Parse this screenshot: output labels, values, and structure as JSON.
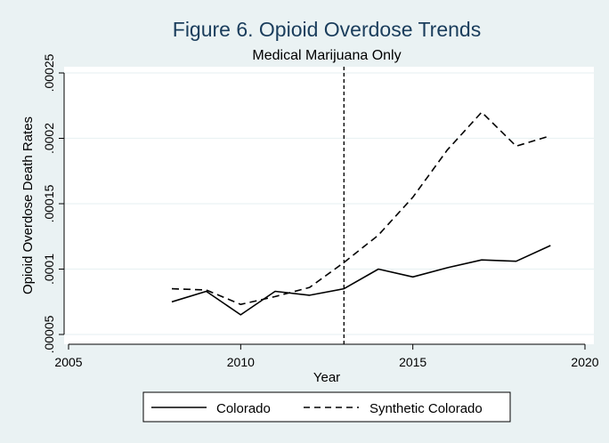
{
  "chart_data": {
    "type": "line",
    "title": "Figure 6. Opioid Overdose Trends",
    "subtitle": "Medical Marijuana Only",
    "xlabel": "Year",
    "ylabel": "Opioid Overdose Death Rates",
    "xlim": [
      2005,
      2020
    ],
    "ylim": [
      5e-05,
      0.00025
    ],
    "xticks": [
      {
        "value": 2005,
        "label": "2005"
      },
      {
        "value": 2010,
        "label": "2010"
      },
      {
        "value": 2015,
        "label": "2015"
      },
      {
        "value": 2020,
        "label": "2020"
      }
    ],
    "yticks": [
      {
        "value": 5e-05,
        "label": ".00005"
      },
      {
        "value": 0.0001,
        "label": ".0001"
      },
      {
        "value": 0.00015,
        "label": ".00015"
      },
      {
        "value": 0.0002,
        "label": ".0002"
      },
      {
        "value": 0.00025,
        "label": ".00025"
      }
    ],
    "grid": true,
    "reference_line_x": 2013,
    "legend_position": "bottom",
    "x": [
      2008,
      2009,
      2010,
      2011,
      2012,
      2013,
      2014,
      2015,
      2016,
      2017,
      2018,
      2019
    ],
    "series": [
      {
        "name": "Colorado",
        "style": "solid",
        "color": "#000000",
        "values": [
          7.5e-05,
          8.3e-05,
          6.5e-05,
          8.3e-05,
          8e-05,
          8.5e-05,
          0.0001,
          9.4e-05,
          0.000101,
          0.000107,
          0.000106,
          0.000118
        ]
      },
      {
        "name": "Synthetic Colorado",
        "style": "dashed",
        "color": "#000000",
        "values": [
          8.5e-05,
          8.4e-05,
          7.3e-05,
          7.9e-05,
          8.6e-05,
          0.000105,
          0.000126,
          0.000155,
          0.000191,
          0.00022,
          0.000194,
          0.000202
        ]
      }
    ]
  },
  "colors": {
    "background": "#eaf2f3",
    "plot_area": "#ffffff",
    "gridline": "#eaf2f3",
    "title": "#1a3d5c"
  }
}
